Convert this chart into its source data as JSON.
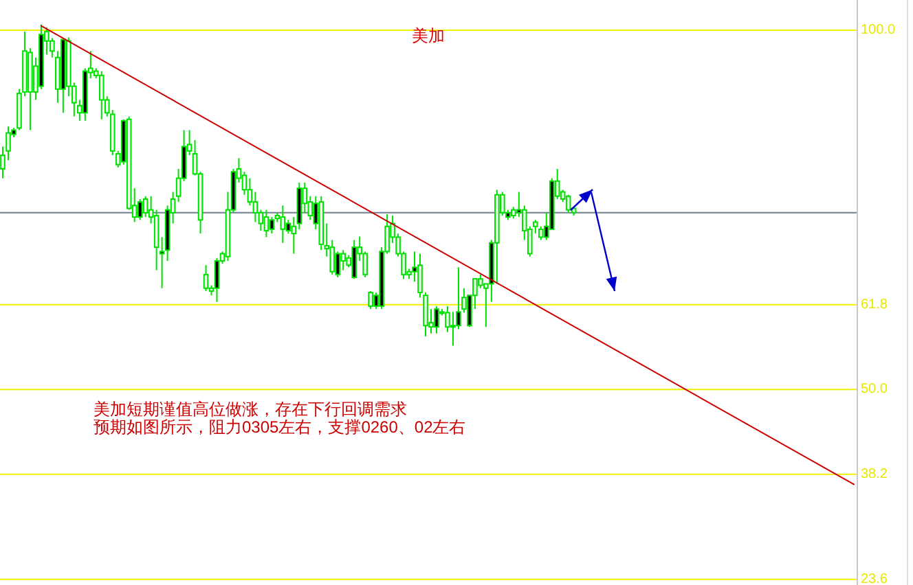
{
  "chart_data": {
    "type": "candlestick",
    "title": "美加",
    "annotations": [
      "美加短期谨值高位做涨，存在下行回调需求",
      "预期如图所示，阻力0305左右，支撑0260、02左右"
    ],
    "categories": [
      null,
      null,
      null,
      null,
      null,
      null,
      null,
      null,
      null,
      null,
      null,
      null,
      null,
      null,
      null,
      null,
      null,
      null,
      null,
      null,
      null,
      null,
      null,
      null,
      null,
      null,
      null,
      null,
      null,
      null,
      null,
      null,
      null,
      null,
      null,
      null,
      null,
      null,
      null,
      null,
      null,
      null,
      null,
      null,
      null,
      null,
      null,
      null,
      null,
      null,
      null,
      null,
      null,
      null,
      null,
      null,
      null,
      null,
      null,
      null,
      null,
      null,
      null,
      null,
      null,
      null,
      null,
      null,
      null,
      null,
      null,
      null,
      null,
      null,
      null,
      null,
      null,
      null,
      null,
      null,
      null,
      null,
      null,
      null,
      null,
      null,
      null,
      null,
      null,
      null,
      null,
      null,
      null,
      null,
      null,
      null,
      null,
      null,
      null,
      null,
      null,
      null,
      null,
      null,
      null,
      null,
      null,
      null,
      null,
      null,
      null,
      null,
      null,
      null,
      null,
      null,
      null,
      null,
      null,
      null,
      null,
      null,
      null,
      null,
      null,
      null,
      null,
      null,
      null,
      null,
      null,
      null,
      null,
      null,
      null,
      null,
      null,
      null,
      null,
      null,
      null,
      null,
      null,
      null,
      null,
      null,
      null,
      null,
      null,
      null,
      null,
      null,
      null,
      null,
      null,
      null
    ],
    "ohlc": [
      [
        80.7,
        83.8,
        79.4,
        82.6
      ],
      [
        83.2,
        86.6,
        81.9,
        85.7
      ],
      [
        86.1,
        86.4,
        85.1,
        85.5
      ],
      [
        86.4,
        91.8,
        86.1,
        91.2
      ],
      [
        91.4,
        99.8,
        90.8,
        97.1
      ],
      [
        91.4,
        97.5,
        86.1,
        96.9
      ],
      [
        91.4,
        96.2,
        90.3,
        95.0
      ],
      [
        99.4,
        100.8,
        91.8,
        92.2
      ],
      [
        98.5,
        100.4,
        96.6,
        99.8
      ],
      [
        97.1,
        98.9,
        96.2,
        98.5
      ],
      [
        91.8,
        97.1,
        89.9,
        96.2
      ],
      [
        98.7,
        98.7,
        88.5,
        91.8
      ],
      [
        92.2,
        99.0,
        90.8,
        98.5
      ],
      [
        89.9,
        92.7,
        88.0,
        92.2
      ],
      [
        88.5,
        90.3,
        87.4,
        89.5
      ],
      [
        94.3,
        94.7,
        87.4,
        88.5
      ],
      [
        94.1,
        97.1,
        93.3,
        94.7
      ],
      [
        93.7,
        94.7,
        93.3,
        94.3
      ],
      [
        90.3,
        94.3,
        87.6,
        93.7
      ],
      [
        88.5,
        90.8,
        88.0,
        90.3
      ],
      [
        83.2,
        88.9,
        82.6,
        88.3
      ],
      [
        81.3,
        83.2,
        80.9,
        82.8
      ],
      [
        87.4,
        87.6,
        81.3,
        81.7
      ],
      [
        75.2,
        88.0,
        75.0,
        87.6
      ],
      [
        74.0,
        78.0,
        73.3,
        75.6
      ],
      [
        76.1,
        76.5,
        73.6,
        74.0
      ],
      [
        74.6,
        76.9,
        74.0,
        76.5
      ],
      [
        74.0,
        76.9,
        73.1,
        75.0
      ],
      [
        69.8,
        75.0,
        66.6,
        74.2
      ],
      [
        69.2,
        71.2,
        64.1,
        68.9
      ],
      [
        75.0,
        75.6,
        67.9,
        69.4
      ],
      [
        74.6,
        77.5,
        73.1,
        76.5
      ],
      [
        76.9,
        80.7,
        76.1,
        79.4
      ],
      [
        83.8,
        86.1,
        79.0,
        79.4
      ],
      [
        83.2,
        86.1,
        82.6,
        84.1
      ],
      [
        80.0,
        84.7,
        79.8,
        82.8
      ],
      [
        73.6,
        80.3,
        71.7,
        80.0
      ],
      [
        64.1,
        67.3,
        63.7,
        66.0
      ],
      [
        63.7,
        64.5,
        63.1,
        64.1
      ],
      [
        67.9,
        68.3,
        62.2,
        64.1
      ],
      [
        67.9,
        69.2,
        67.5,
        68.9
      ],
      [
        68.5,
        77.5,
        67.9,
        75.0
      ],
      [
        80.3,
        80.7,
        74.6,
        75.0
      ],
      [
        79.4,
        82.2,
        78.8,
        80.7
      ],
      [
        77.8,
        80.3,
        77.1,
        79.8
      ],
      [
        76.1,
        79.4,
        75.6,
        77.8
      ],
      [
        74.6,
        77.5,
        73.3,
        76.1
      ],
      [
        73.1,
        75.0,
        72.1,
        74.6
      ],
      [
        72.1,
        75.0,
        71.2,
        74.0
      ],
      [
        73.6,
        74.0,
        71.7,
        72.3
      ],
      [
        73.8,
        74.6,
        73.3,
        74.2
      ],
      [
        72.3,
        75.6,
        70.4,
        74.0
      ],
      [
        73.1,
        73.6,
        71.7,
        72.1
      ],
      [
        71.7,
        74.0,
        68.9,
        72.7
      ],
      [
        78.0,
        78.8,
        72.3,
        73.1
      ],
      [
        75.9,
        78.8,
        74.6,
        78.0
      ],
      [
        74.2,
        76.9,
        73.6,
        76.1
      ],
      [
        75.9,
        76.9,
        72.3,
        73.1
      ],
      [
        70.2,
        76.9,
        69.4,
        76.1
      ],
      [
        69.6,
        73.1,
        68.5,
        70.0
      ],
      [
        66.4,
        70.8,
        66.0,
        69.8
      ],
      [
        68.9,
        69.2,
        65.6,
        66.0
      ],
      [
        67.9,
        69.4,
        66.6,
        68.9
      ],
      [
        67.3,
        68.7,
        67.0,
        68.3
      ],
      [
        69.8,
        70.8,
        65.4,
        65.6
      ],
      [
        68.9,
        71.3,
        67.9,
        69.8
      ],
      [
        66.0,
        69.2,
        65.6,
        68.9
      ],
      [
        61.6,
        63.7,
        61.2,
        63.5
      ],
      [
        63.1,
        63.5,
        61.2,
        61.6
      ],
      [
        69.2,
        69.8,
        61.2,
        61.6
      ],
      [
        69.2,
        74.4,
        68.9,
        72.7
      ],
      [
        71.2,
        74.2,
        70.4,
        73.1
      ],
      [
        68.9,
        71.7,
        68.5,
        71.2
      ],
      [
        66.0,
        69.2,
        65.4,
        68.9
      ],
      [
        66.0,
        66.8,
        65.4,
        66.4
      ],
      [
        67.0,
        69.2,
        65.0,
        66.4
      ],
      [
        63.5,
        68.9,
        62.8,
        67.3
      ],
      [
        58.9,
        63.5,
        57.4,
        63.1
      ],
      [
        58.7,
        61.2,
        57.8,
        59.3
      ],
      [
        61.2,
        61.6,
        57.8,
        58.7
      ],
      [
        60.7,
        61.2,
        60.3,
        60.8
      ],
      [
        58.7,
        61.6,
        58.0,
        60.7
      ],
      [
        58.9,
        60.8,
        56.1,
        58.7
      ],
      [
        60.8,
        67.0,
        58.4,
        58.9
      ],
      [
        61.2,
        64.1,
        60.7,
        62.8
      ],
      [
        63.1,
        63.1,
        58.7,
        58.9
      ],
      [
        63.1,
        65.4,
        61.2,
        65.4
      ],
      [
        64.5,
        66.0,
        64.1,
        65.4
      ],
      [
        64.1,
        64.7,
        58.7,
        64.7
      ],
      [
        70.4,
        70.8,
        62.2,
        64.7
      ],
      [
        70.4,
        77.8,
        64.7,
        77.1
      ],
      [
        74.6,
        77.5,
        74.2,
        77.1
      ],
      [
        74.6,
        75.0,
        73.6,
        74.0
      ],
      [
        74.2,
        75.4,
        73.8,
        75.0
      ],
      [
        75.0,
        77.5,
        74.0,
        74.6
      ],
      [
        72.1,
        75.6,
        70.8,
        75.0
      ],
      [
        68.9,
        72.7,
        68.5,
        72.3
      ],
      [
        72.7,
        73.6,
        71.7,
        73.3
      ],
      [
        71.2,
        72.7,
        70.8,
        72.3
      ],
      [
        72.7,
        74.6,
        70.8,
        71.2
      ],
      [
        79.0,
        79.4,
        72.3,
        72.3
      ],
      [
        76.9,
        80.7,
        76.5,
        79.0
      ],
      [
        76.5,
        77.8,
        76.1,
        77.5
      ],
      [
        75.0,
        77.1,
        74.6,
        76.9
      ],
      [
        74.6,
        75.4,
        74.2,
        75.2
      ],
      null,
      null,
      null,
      null,
      null,
      null,
      null,
      null,
      null,
      null,
      null,
      null,
      null,
      null,
      null,
      null,
      null,
      null,
      null,
      null,
      null,
      null,
      null,
      null,
      null,
      null,
      null,
      null,
      null,
      null,
      null,
      null,
      null,
      null,
      null,
      null,
      null,
      null,
      null,
      null,
      null,
      null,
      null,
      null,
      null,
      null,
      null,
      null,
      null,
      null,
      null
    ],
    "series": [
      {
        "type": "line",
        "color": "#cc0000",
        "values": [
          null,
          null,
          null,
          null,
          null,
          null,
          null,
          100.6,
          null,
          null,
          null,
          null,
          null,
          null,
          null,
          null,
          null,
          null,
          null,
          null,
          null,
          null,
          null,
          null,
          null,
          null,
          null,
          null,
          null,
          null,
          null,
          null,
          null,
          null,
          null,
          null,
          null,
          null,
          null,
          null,
          null,
          null,
          null,
          null,
          null,
          null,
          null,
          null,
          null,
          null,
          null,
          null,
          null,
          null,
          null,
          null,
          null,
          null,
          null,
          null,
          null,
          null,
          null,
          null,
          null,
          null,
          null,
          null,
          null,
          null,
          null,
          null,
          null,
          null,
          null,
          null,
          null,
          null,
          null,
          null,
          null,
          null,
          null,
          null,
          null,
          null,
          null,
          null,
          null,
          null,
          null,
          null,
          null,
          null,
          null,
          null,
          null,
          null,
          null,
          null,
          null,
          null,
          null,
          null,
          null,
          null,
          null,
          null,
          null,
          null,
          null,
          null,
          null,
          null,
          null,
          null,
          null,
          null,
          null,
          null,
          null,
          null,
          null,
          null,
          null,
          null,
          null,
          null,
          null,
          null,
          null,
          null,
          null,
          null,
          null,
          null,
          null,
          null,
          null,
          null,
          null,
          null,
          null,
          null,
          null,
          null,
          null,
          null,
          null,
          null,
          null,
          null,
          null,
          null,
          null,
          36.8
        ]
      }
    ],
    "ref_lines": [
      {
        "axis": "y",
        "value": 74.6,
        "color": "#708090"
      }
    ],
    "ylim": [
      22.8,
      104.2
    ],
    "yticks": [
      {
        "value": 100,
        "label": "100.0"
      },
      {
        "value": 61.8,
        "label": "61.8"
      },
      {
        "value": 50,
        "label": "50.0"
      },
      {
        "value": 38.2,
        "label": "38.2"
      },
      {
        "value": 23.6,
        "label": "23.6"
      }
    ],
    "grid": "y",
    "tick_labels": "y"
  }
}
